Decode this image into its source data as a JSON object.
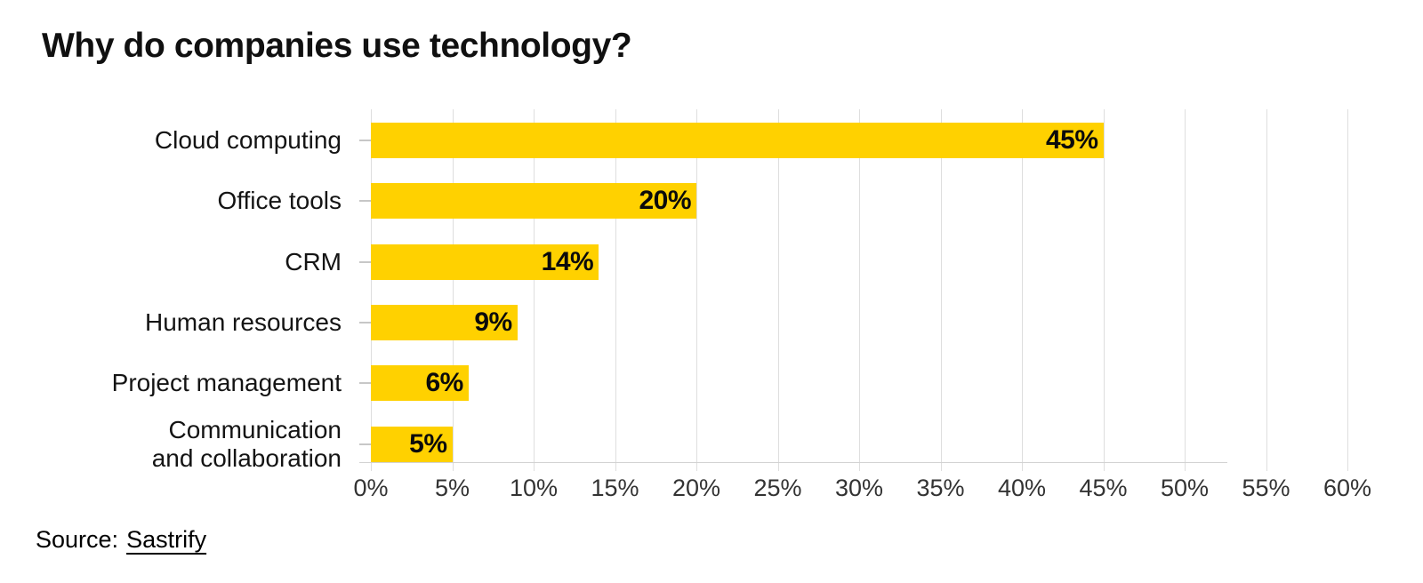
{
  "title": "Why do companies use technology?",
  "source": {
    "prefix": "Source:",
    "link_text": "Sastrify"
  },
  "colors": {
    "bar": "#FFD100",
    "gridline": "#DEDEDE",
    "baseline": "#D2D2D2",
    "category_tick": "#C7C7C7",
    "title_text": "#101010",
    "axis_label_text": "#333333",
    "value_label_text": "#0B0B0B"
  },
  "chart_data": {
    "type": "bar",
    "orientation": "horizontal",
    "title": "Why do companies use technology?",
    "categories": [
      "Cloud computing",
      "Office tools",
      "CRM",
      "Human resources",
      "Project management",
      "Communication\nand collaboration"
    ],
    "values": [
      45,
      20,
      14,
      9,
      6,
      5
    ],
    "value_labels": [
      "45%",
      "20%",
      "14%",
      "9%",
      "6%",
      "5%"
    ],
    "xlabel": "",
    "ylabel": "",
    "xlim": [
      0,
      60
    ],
    "x_ticks": [
      "0%",
      "5%",
      "10%",
      "15%",
      "20%",
      "25%",
      "30%",
      "35%",
      "40%",
      "45%",
      "50%",
      "55%",
      "60%"
    ],
    "x_tick_values": [
      0,
      5,
      10,
      15,
      20,
      25,
      30,
      35,
      40,
      45,
      50,
      55,
      60
    ],
    "grid": "vertical-only",
    "legend": false,
    "value_label_position": "inside-end",
    "source": "Source: Sastrify"
  }
}
